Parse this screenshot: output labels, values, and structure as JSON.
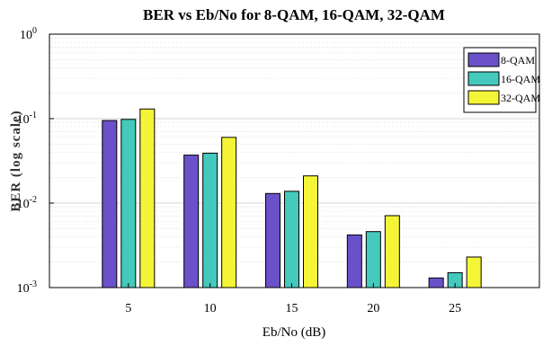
{
  "chart_data": {
    "type": "bar",
    "title": "BER vs Eb/No for 8-QAM, 16-QAM, 32-QAM",
    "xlabel": "Eb/No (dB)",
    "ylabel": "BER (log scale)",
    "y_scale": "log",
    "ylim": [
      0.001,
      1
    ],
    "y_ticks": [
      {
        "base": "10",
        "exp": "0"
      },
      {
        "base": "10",
        "exp": "-1"
      },
      {
        "base": "10",
        "exp": "-2"
      },
      {
        "base": "10",
        "exp": "-3"
      }
    ],
    "categories": [
      "5",
      "10",
      "15",
      "20",
      "25"
    ],
    "series": [
      {
        "name": "8-QAM",
        "color": "#6a51c9",
        "values": [
          0.095,
          0.037,
          0.013,
          0.0042,
          0.0013
        ]
      },
      {
        "name": "16-QAM",
        "color": "#44c9bc",
        "values": [
          0.098,
          0.039,
          0.0138,
          0.0046,
          0.0015
        ]
      },
      {
        "name": "32-QAM",
        "color": "#f5f538",
        "values": [
          0.13,
          0.06,
          0.021,
          0.0071,
          0.0023
        ]
      }
    ],
    "grid": true,
    "legend_position": "top-right"
  }
}
